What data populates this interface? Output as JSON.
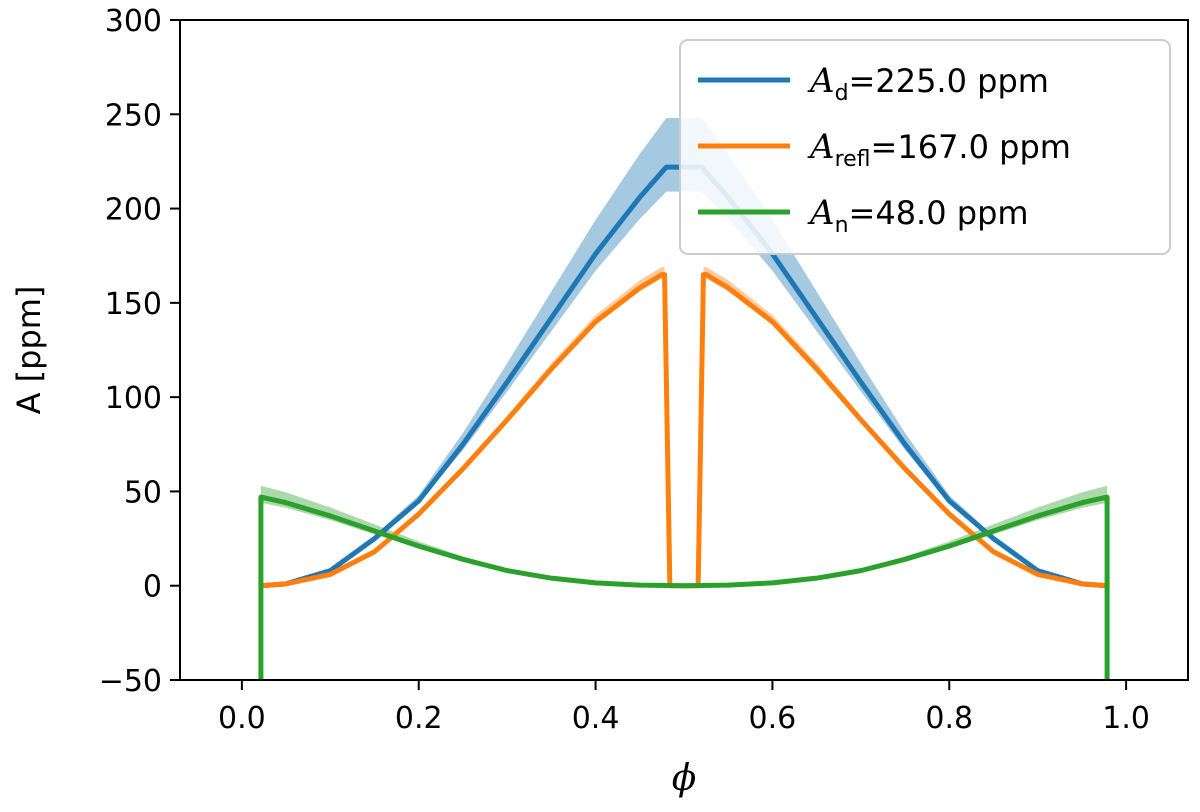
{
  "chart_data": {
    "type": "line",
    "xlabel": "ϕ",
    "ylabel": "A [ppm]",
    "xlim": [
      -0.07,
      1.07
    ],
    "ylim": [
      -50,
      300
    ],
    "xticks": [
      0.0,
      0.2,
      0.4,
      0.6,
      0.8,
      1.0
    ],
    "xtick_labels": [
      "0.0",
      "0.2",
      "0.4",
      "0.6",
      "0.8",
      "1.0"
    ],
    "yticks": [
      -50,
      0,
      50,
      100,
      150,
      200,
      250,
      300
    ],
    "ytick_labels": [
      "−50",
      "0",
      "50",
      "100",
      "150",
      "200",
      "250",
      "300"
    ],
    "grid": false,
    "legend_position": "top-right",
    "series": [
      {
        "name": "A_d=225.0 ppm",
        "legend_main": "A",
        "legend_sub": "d",
        "legend_value": "=225.0 ppm",
        "color": "#1f77b4",
        "x": [
          0.0215,
          0.05,
          0.1,
          0.15,
          0.2,
          0.25,
          0.3,
          0.35,
          0.4,
          0.45,
          0.48,
          0.52,
          0.55,
          0.6,
          0.65,
          0.7,
          0.75,
          0.8,
          0.85,
          0.9,
          0.95,
          0.9785
        ],
        "y": [
          0,
          1,
          8,
          25,
          45,
          75,
          108,
          142,
          176,
          206,
          222,
          222,
          206,
          176,
          142,
          108,
          75,
          45,
          25,
          8,
          1,
          0
        ],
        "band_width": [
          0,
          0,
          0.5,
          1.5,
          3,
          6,
          10,
          14,
          18,
          23,
          26,
          26,
          23,
          18,
          14,
          10,
          6,
          3,
          1.5,
          0.5,
          0,
          0
        ]
      },
      {
        "name": "A_refl=167.0 ppm",
        "legend_main": "A",
        "legend_sub": "refl",
        "legend_value": "=167.0 ppm",
        "color": "#ff7f0e",
        "x": [
          0.0215,
          0.05,
          0.1,
          0.15,
          0.2,
          0.25,
          0.3,
          0.35,
          0.4,
          0.45,
          0.475,
          0.478,
          0.484,
          0.516,
          0.522,
          0.525,
          0.55,
          0.6,
          0.65,
          0.7,
          0.75,
          0.8,
          0.85,
          0.9,
          0.95,
          0.9785
        ],
        "y": [
          0,
          1,
          6,
          18,
          38,
          62,
          88,
          115,
          140,
          158,
          165,
          165,
          0,
          0,
          165,
          165,
          158,
          140,
          115,
          88,
          62,
          38,
          18,
          6,
          1,
          0
        ],
        "band_width": [
          0,
          0,
          0,
          0.5,
          1,
          1.5,
          2,
          3,
          3.5,
          4,
          4,
          4,
          0,
          0,
          4,
          4,
          4,
          3.5,
          3,
          2,
          1.5,
          1,
          0.5,
          0,
          0,
          0
        ]
      },
      {
        "name": "A_n=48.0 ppm",
        "legend_main": "A",
        "legend_sub": "n",
        "legend_value": "=48.0 ppm",
        "color": "#2ca02c",
        "x": [
          0.0215,
          0.0215,
          0.05,
          0.1,
          0.15,
          0.2,
          0.25,
          0.3,
          0.35,
          0.4,
          0.45,
          0.5,
          0.55,
          0.6,
          0.65,
          0.7,
          0.75,
          0.8,
          0.85,
          0.9,
          0.95,
          0.9785,
          0.9785
        ],
        "y": [
          -50,
          47,
          44,
          37,
          29,
          21,
          14,
          8,
          4,
          1.5,
          0.3,
          0,
          0.3,
          1.5,
          4,
          8,
          14,
          21,
          29,
          37,
          44,
          47,
          -50
        ],
        "band_width": [
          0,
          6,
          5.5,
          4.5,
          3.5,
          2.5,
          1.5,
          1,
          0.5,
          0,
          0,
          0,
          0,
          0,
          0.5,
          1,
          1.5,
          2.5,
          3.5,
          4.5,
          5.5,
          6,
          0
        ]
      }
    ]
  }
}
